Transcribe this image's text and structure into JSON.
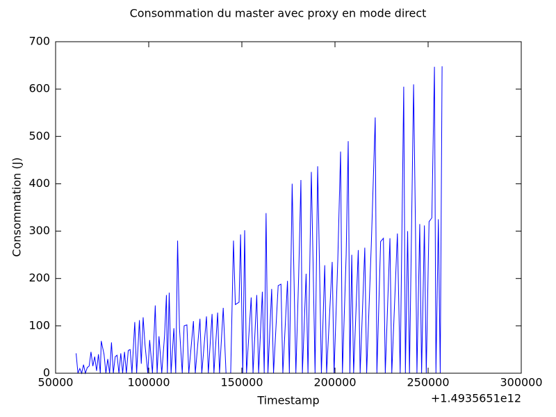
{
  "chart_data": {
    "type": "line",
    "title": "Consommation du master avec proxy en mode direct",
    "xlabel": "Timestamp",
    "ylabel": "Consommation (J)",
    "x_offset": "+1.4935651e12",
    "xlim": [
      50000,
      300000
    ],
    "xticks": [
      50000,
      100000,
      150000,
      200000,
      250000,
      300000
    ],
    "ylim": [
      0,
      700
    ],
    "yticks": [
      0,
      100,
      200,
      300,
      400,
      500,
      600,
      700
    ],
    "grid": false,
    "x": [
      61000,
      62000,
      63000,
      64000,
      65000,
      66000,
      67000,
      68000,
      69000,
      70000,
      71000,
      72000,
      73000,
      74000,
      74500,
      76000,
      77000,
      78000,
      79000,
      80000,
      81000,
      82000,
      83000,
      84000,
      85000,
      86000,
      87000,
      88000,
      89000,
      90000,
      91000,
      92500,
      93500,
      95000,
      96000,
      97000,
      98000,
      99500,
      100500,
      102000,
      103500,
      104500,
      105500,
      107000,
      108500,
      109500,
      110000,
      111000,
      112000,
      113500,
      114500,
      115500,
      116500,
      118000,
      119000,
      120500,
      121500,
      124000,
      125000,
      127500,
      128500,
      131000,
      132000,
      134000,
      135000,
      137000,
      138000,
      140000,
      141500,
      144000,
      145500,
      146500,
      148500,
      149300,
      150500,
      151500,
      152500,
      155000,
      156000,
      158000,
      159000,
      161000,
      162000,
      163000,
      164000,
      166000,
      167000,
      169500,
      171000,
      172000,
      174500,
      175500,
      177000,
      178000,
      179000,
      180500,
      181700,
      182500,
      184500,
      185500,
      187300,
      188300,
      189300,
      190700,
      191700,
      192700,
      194500,
      195500,
      198500,
      199500,
      201500,
      203000,
      204000,
      206000,
      207100,
      208000,
      209000,
      210000,
      212500,
      213500,
      216000,
      217000,
      219500,
      221600,
      222500,
      224500,
      226000,
      227000,
      229500,
      230500,
      233500,
      235000,
      236900,
      237800,
      239000,
      240000,
      242200,
      243200,
      244000,
      245500,
      246500,
      248000,
      249000,
      250500,
      252000,
      253400,
      254200,
      255500,
      256500,
      257500
    ],
    "series": [
      {
        "color": "#0000ff",
        "values": [
          42,
          0,
          10,
          0,
          18,
          0,
          12,
          15,
          45,
          15,
          35,
          5,
          40,
          0,
          68,
          40,
          0,
          30,
          0,
          65,
          0,
          35,
          38,
          0,
          42,
          0,
          45,
          0,
          48,
          50,
          0,
          108,
          0,
          112,
          20,
          118,
          60,
          0,
          70,
          0,
          143,
          0,
          78,
          0,
          80,
          165,
          0,
          170,
          0,
          95,
          0,
          280,
          95,
          0,
          100,
          102,
          0,
          110,
          0,
          115,
          0,
          120,
          0,
          125,
          0,
          128,
          0,
          138,
          0,
          0,
          280,
          145,
          150,
          293,
          0,
          302,
          0,
          160,
          0,
          165,
          0,
          172,
          0,
          338,
          0,
          178,
          0,
          185,
          188,
          0,
          195,
          0,
          400,
          200,
          0,
          205,
          408,
          0,
          210,
          0,
          425,
          220,
          0,
          437,
          225,
          0,
          228,
          0,
          235,
          0,
          238,
          468,
          0,
          250,
          490,
          0,
          250,
          0,
          260,
          0,
          265,
          0,
          272,
          540,
          0,
          278,
          285,
          0,
          285,
          0,
          295,
          0,
          605,
          0,
          300,
          0,
          610,
          310,
          0,
          315,
          0,
          312,
          0,
          320,
          328,
          647,
          0,
          325,
          0,
          648
        ]
      }
    ]
  }
}
